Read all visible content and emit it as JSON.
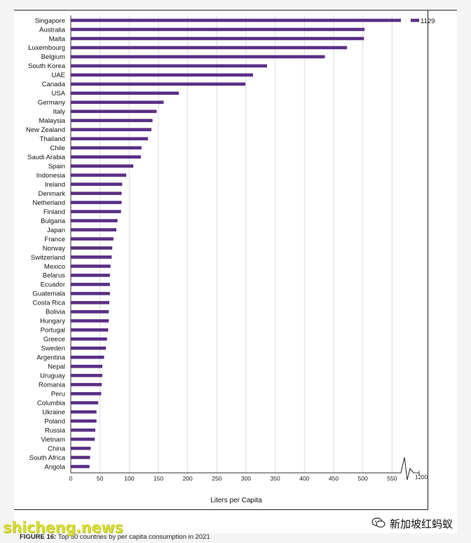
{
  "chart_data": {
    "type": "bar",
    "orientation": "horizontal",
    "title": "",
    "xlabel": "Liters per Capita",
    "ylabel": "",
    "xlim": [
      0,
      575
    ],
    "axis_break": true,
    "break_tick_label": "1200",
    "xticks": [
      0,
      50,
      100,
      150,
      200,
      250,
      300,
      350,
      400,
      450,
      500,
      550
    ],
    "grid": true,
    "bar_color": "#5b2f86",
    "categories": [
      "Singapore",
      "Australia",
      "Malta",
      "Luxembourg",
      "Belgium",
      "South Korea",
      "UAE",
      "Canada",
      "USA",
      "Germany",
      "Italy",
      "Malaysia",
      "New Zealand",
      "Thailand",
      "Chile",
      "Saudi Arabia",
      "Spain",
      "Indonesia",
      "Ireland",
      "Denmark",
      "Netherland",
      "Finland",
      "Bulgaria",
      "Japan",
      "France",
      "Norway",
      "Switzerland",
      "Mexico",
      "Belarus",
      "Ecuador",
      "Guatemala",
      "Costa Rica",
      "Bolivia",
      "Hungary",
      "Portugal",
      "Greece",
      "Sweden",
      "Argentina",
      "Nepal",
      "Uruguay",
      "Romania",
      "Peru",
      "Columbia",
      "Ukraine",
      "Poland",
      "Russia",
      "Vietnam",
      "China",
      "South Africa",
      "Angola"
    ],
    "values": [
      1129,
      503,
      502,
      473,
      435,
      336,
      312,
      299,
      185,
      159,
      147,
      140,
      138,
      132,
      121,
      120,
      107,
      95,
      88,
      87,
      87,
      86,
      80,
      78,
      73,
      71,
      70,
      68,
      67,
      67,
      67,
      66,
      65,
      65,
      64,
      62,
      60,
      57,
      54,
      54,
      53,
      52,
      47,
      44,
      44,
      42,
      41,
      34,
      33,
      32
    ],
    "data_labels": [
      {
        "category": "Singapore",
        "text": "1129"
      }
    ]
  },
  "caption": {
    "label": "FIGURE 16:",
    "text": " Top 50 countries by per capita consumption in 2021"
  },
  "watermark": {
    "left_text": "shicheng.news",
    "right_text": "新加坡红蚂蚁"
  }
}
